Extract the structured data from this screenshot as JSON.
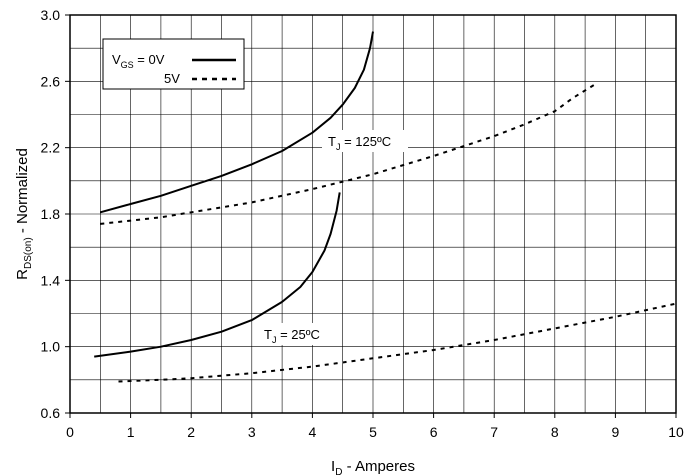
{
  "chart_data": {
    "type": "line",
    "xlabel": {
      "main": "I",
      "sub": "D",
      "rest": " - Amperes"
    },
    "ylabel": {
      "main": "R",
      "sub": "DS(on)",
      "rest": " - Normalized"
    },
    "xlim": [
      0,
      10
    ],
    "ylim": [
      0.6,
      3.0
    ],
    "x_ticks": [
      0,
      1,
      2,
      3,
      4,
      5,
      6,
      7,
      8,
      9,
      10
    ],
    "y_ticks": [
      0.6,
      1.0,
      1.4,
      1.8,
      2.2,
      2.6,
      3.0
    ],
    "x_tick_labels": [
      "0",
      "1",
      "2",
      "3",
      "4",
      "5",
      "6",
      "7",
      "8",
      "9",
      "10"
    ],
    "y_tick_labels": [
      "0.6",
      "1.0",
      "1.4",
      "1.8",
      "2.2",
      "2.6",
      "3.0"
    ],
    "grid": {
      "x_minor_step": 0.5,
      "y_minor_step": 0.2
    },
    "legend": {
      "placement": "top-left",
      "entries": [
        {
          "main": "V",
          "sub": "GS",
          "rest": " = 0V",
          "style": "solid"
        },
        {
          "main": "",
          "sub": "",
          "rest": "5V",
          "style": "dashed"
        }
      ]
    },
    "annotations": [
      {
        "main": "T",
        "sub": "J",
        "rest": " = 125ºC",
        "x": 6.05,
        "y": 2.22
      },
      {
        "main": "T",
        "sub": "J",
        "rest": " = 25ºC",
        "x": 4.5,
        "y": 1.04
      }
    ],
    "series": [
      {
        "group": "125C",
        "style": "solid",
        "points": [
          [
            0.5,
            1.81
          ],
          [
            1.0,
            1.86
          ],
          [
            1.5,
            1.91
          ],
          [
            2.0,
            1.97
          ],
          [
            2.5,
            2.03
          ],
          [
            3.0,
            2.1
          ],
          [
            3.5,
            2.18
          ],
          [
            4.0,
            2.29
          ],
          [
            4.3,
            2.38
          ],
          [
            4.5,
            2.46
          ],
          [
            4.7,
            2.56
          ],
          [
            4.85,
            2.67
          ],
          [
            4.95,
            2.8
          ],
          [
            5.0,
            2.9
          ]
        ]
      },
      {
        "group": "125C",
        "style": "dashed",
        "points": [
          [
            0.5,
            1.74
          ],
          [
            1.0,
            1.76
          ],
          [
            1.5,
            1.78
          ],
          [
            2.0,
            1.81
          ],
          [
            2.5,
            1.84
          ],
          [
            3.0,
            1.87
          ],
          [
            4.0,
            1.95
          ],
          [
            5.0,
            2.04
          ],
          [
            6.0,
            2.15
          ],
          [
            7.0,
            2.27
          ],
          [
            7.5,
            2.34
          ],
          [
            8.0,
            2.42
          ],
          [
            8.3,
            2.5
          ],
          [
            8.7,
            2.59
          ]
        ]
      },
      {
        "group": "25C",
        "style": "solid",
        "points": [
          [
            0.4,
            0.94
          ],
          [
            1.0,
            0.97
          ],
          [
            1.5,
            1.0
          ],
          [
            2.0,
            1.04
          ],
          [
            2.5,
            1.09
          ],
          [
            3.0,
            1.16
          ],
          [
            3.5,
            1.27
          ],
          [
            3.8,
            1.36
          ],
          [
            4.0,
            1.45
          ],
          [
            4.2,
            1.58
          ],
          [
            4.3,
            1.68
          ],
          [
            4.4,
            1.82
          ],
          [
            4.45,
            1.93
          ]
        ]
      },
      {
        "group": "25C",
        "style": "dashed",
        "points": [
          [
            0.8,
            0.79
          ],
          [
            1.5,
            0.8
          ],
          [
            2.0,
            0.81
          ],
          [
            3.0,
            0.84
          ],
          [
            4.0,
            0.88
          ],
          [
            5.0,
            0.93
          ],
          [
            6.0,
            0.98
          ],
          [
            7.0,
            1.04
          ],
          [
            8.0,
            1.11
          ],
          [
            9.0,
            1.18
          ],
          [
            10.0,
            1.26
          ]
        ]
      }
    ]
  }
}
